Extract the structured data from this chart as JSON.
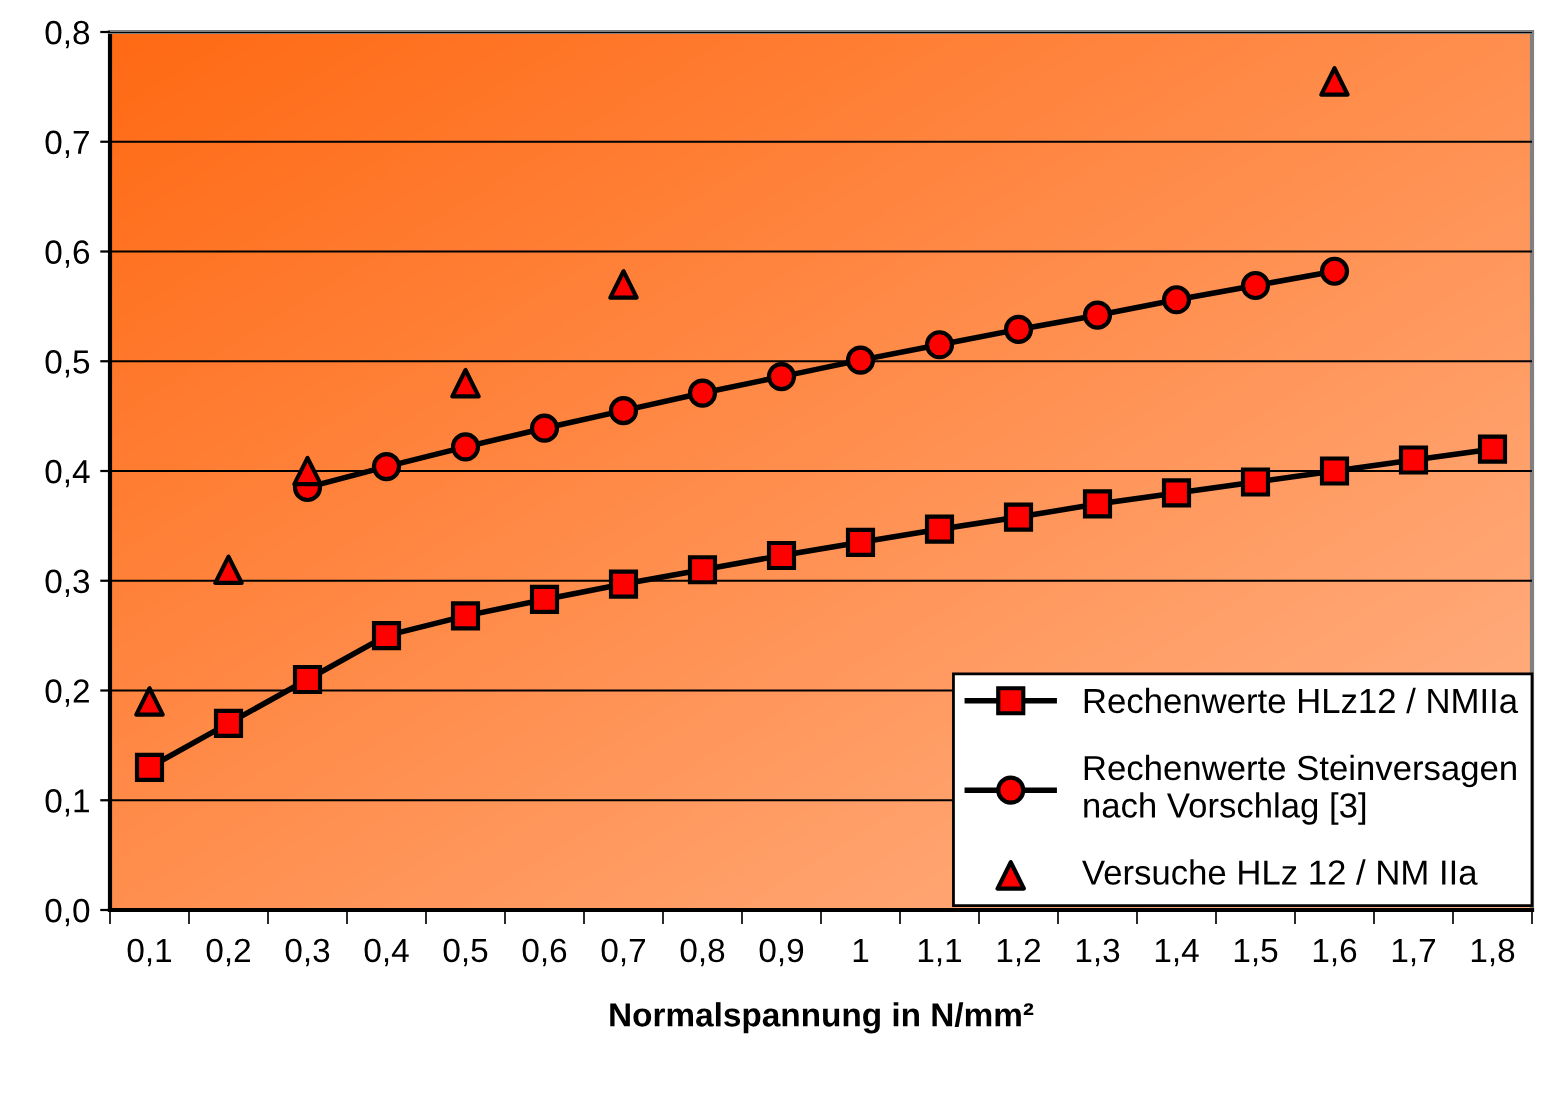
{
  "chart_data": {
    "type": "line",
    "xlabel": "Normalspannung in N/mm²",
    "categories": [
      "0,1",
      "0,2",
      "0,3",
      "0,4",
      "0,5",
      "0,6",
      "0,7",
      "0,8",
      "0,9",
      "1",
      "1,1",
      "1,2",
      "1,3",
      "1,4",
      "1,5",
      "1,6",
      "1,7",
      "1,8"
    ],
    "series": [
      {
        "name": "Rechenwerte HLz12 / NMIIa",
        "color": "#ff0000",
        "marker": "square",
        "values": [
          0.13,
          0.17,
          0.21,
          0.25,
          0.268,
          0.283,
          0.297,
          0.31,
          0.323,
          0.335,
          0.347,
          0.358,
          0.37,
          0.38,
          0.39,
          0.4,
          0.41,
          0.42
        ]
      },
      {
        "name": "Rechenwerte Steinversagen\nnach Vorschlag [3]",
        "color": "#ff0000",
        "marker": "circle",
        "values": [
          null,
          null,
          0.385,
          0.404,
          0.422,
          0.439,
          0.455,
          0.471,
          0.486,
          0.501,
          0.515,
          0.529,
          0.542,
          0.556,
          0.569,
          0.582,
          null,
          null
        ]
      },
      {
        "name": "Versuche HLz 12 / NM IIa",
        "color": "#ff0000",
        "type": "scatter",
        "marker": "triangle",
        "values": [
          0.19,
          0.31,
          0.4,
          null,
          0.48,
          null,
          0.57,
          null,
          null,
          null,
          null,
          null,
          null,
          null,
          null,
          0.755,
          null,
          null
        ]
      }
    ],
    "ylim": [
      0,
      0.8
    ],
    "yticks": [
      {
        "value": 0,
        "label": "0,0"
      },
      {
        "value": 0.1,
        "label": "0,1"
      },
      {
        "value": 0.2,
        "label": "0,2"
      },
      {
        "value": 0.3,
        "label": "0,3"
      },
      {
        "value": 0.4,
        "label": "0,4"
      },
      {
        "value": 0.5,
        "label": "0,5"
      },
      {
        "value": 0.6,
        "label": "0,6"
      },
      {
        "value": 0.7,
        "label": "0,7"
      },
      {
        "value": 0.8,
        "label": "0,8"
      }
    ],
    "grid": "y",
    "legend": "bottom right"
  }
}
